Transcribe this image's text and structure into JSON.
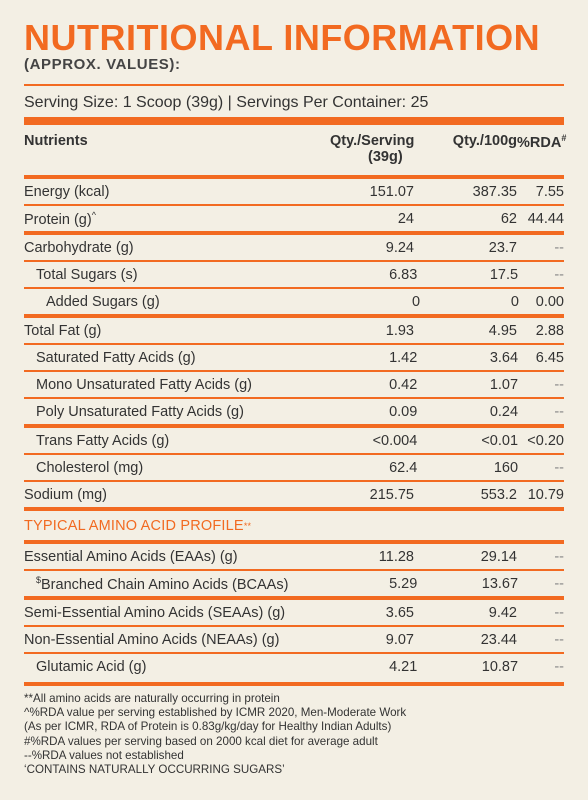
{
  "header": {
    "title": "NUTRITIONAL INFORMATION",
    "subtitle": "(APPROX. VALUES):",
    "serving": "Serving Size: 1 Scoop (39g) | Servings Per Container: 25"
  },
  "table": {
    "columns": {
      "nutrients": "Nutrients",
      "per_serving_line1": "Qty./Serving",
      "per_serving_line2": "(39g)",
      "per_100g": "Qty./100g",
      "rda": "%RDA",
      "rda_mark": "#"
    },
    "rows": [
      {
        "name": "Energy (kcal)",
        "serv": "151.07",
        "g100": "387.35",
        "rda": "7.55"
      },
      {
        "name": "Protein (g)",
        "mark": "^",
        "serv": "24",
        "g100": "62",
        "rda": "44.44"
      },
      {
        "name": "Carbohydrate (g)",
        "serv": "9.24",
        "g100": "23.7",
        "rda": "--"
      },
      {
        "name": "Total Sugars (s)",
        "serv": "6.83",
        "g100": "17.5",
        "rda": "--"
      },
      {
        "name": "Added Sugars (g)",
        "serv": "0",
        "g100": "0",
        "rda": "0.00"
      },
      {
        "name": "Total Fat (g)",
        "serv": "1.93",
        "g100": "4.95",
        "rda": "2.88"
      },
      {
        "name": "Saturated Fatty Acids (g)",
        "serv": "1.42",
        "g100": "3.64",
        "rda": "6.45"
      },
      {
        "name": "Mono Unsaturated Fatty Acids (g)",
        "serv": "0.42",
        "g100": "1.07",
        "rda": "--"
      },
      {
        "name": "Poly Unsaturated Fatty Acids (g)",
        "serv": "0.09",
        "g100": "0.24",
        "rda": "--"
      },
      {
        "name": "Trans Fatty Acids (g)",
        "serv": "<0.004",
        "g100": "<0.01",
        "rda": "<0.20"
      },
      {
        "name": "Cholesterol (mg)",
        "serv": "62.4",
        "g100": "160",
        "rda": "--"
      },
      {
        "name": "Sodium (mg)",
        "serv": "215.75",
        "g100": "553.2",
        "rda": "10.79"
      }
    ],
    "amino_section_label": "TYPICAL AMINO ACID PROFILE",
    "amino_section_mark": "**",
    "amino_rows": [
      {
        "name": "Essential Amino Acids (EAAs) (g)",
        "serv": "11.28",
        "g100": "29.14",
        "rda": "--"
      },
      {
        "name": "Branched Chain Amino Acids (BCAAs)",
        "mark": "$",
        "serv": "5.29",
        "g100": "13.67",
        "rda": "--"
      },
      {
        "name": "Semi-Essential Amino Acids (SEAAs) (g)",
        "serv": "3.65",
        "g100": "9.42",
        "rda": "--"
      },
      {
        "name": "Non-Essential Amino Acids (NEAAs) (g)",
        "serv": "9.07",
        "g100": "23.44",
        "rda": "--"
      },
      {
        "name": "Glutamic Acid (g)",
        "serv": "4.21",
        "g100": "10.87",
        "rda": "--"
      }
    ]
  },
  "footnotes": [
    "**All amino acids are naturally occurring in protein",
    "^%RDA value per serving established by ICMR 2020, Men-Moderate Work",
    "(As per ICMR, RDA of Protein is 0.83g/kg/day for Healthy Indian Adults)",
    "#%RDA values per serving based on 2000 kcal diet for average adult",
    "--%RDA values not established",
    "‘CONTAINS NATURALLY OCCURRING SUGARS’"
  ],
  "colors": {
    "accent": "#f26a21",
    "background": "#f3efe4",
    "text": "#2b2b2b"
  }
}
